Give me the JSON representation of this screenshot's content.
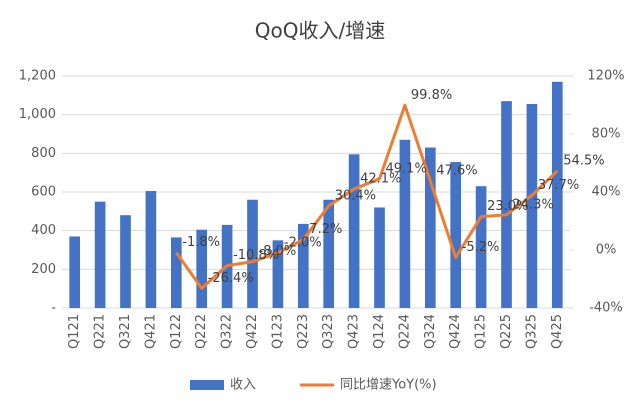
{
  "chart_data": {
    "type": "bar_line",
    "title": "QoQ收入/增速",
    "categories": [
      "Q121",
      "Q221",
      "Q321",
      "Q421",
      "Q122",
      "Q222",
      "Q322",
      "Q422",
      "Q123",
      "Q223",
      "Q323",
      "Q423",
      "Q124",
      "Q224",
      "Q324",
      "Q424",
      "Q125",
      "Q225",
      "Q325",
      "Q425"
    ],
    "series": [
      {
        "name": "收入",
        "color": "#4472c4",
        "axis": "y",
        "values": [
          370,
          550,
          480,
          605,
          365,
          405,
          430,
          560,
          350,
          435,
          560,
          795,
          520,
          870,
          830,
          755,
          630,
          1070,
          1055,
          1170
        ]
      },
      {
        "name": "同比增速YoY(%)",
        "color": "#ed7d31",
        "axis": "y2",
        "values": [
          null,
          null,
          null,
          null,
          -1.8,
          -26.4,
          -10.8,
          -8.0,
          -2.0,
          7.2,
          30.4,
          42.1,
          49.1,
          99.8,
          47.6,
          -5.2,
          23.0,
          24.3,
          37.7,
          54.5
        ],
        "value_labels": [
          null,
          null,
          null,
          null,
          "-1.8%",
          "-26.4%",
          "-10.8%",
          "-8.0%",
          "-2.0%",
          "7.2%",
          "30.4%",
          "42.1%",
          "49.1%",
          "99.8%",
          "47.6%",
          "-5.2%",
          "23.0%",
          "24.3%",
          "37.7%",
          "54.5%"
        ]
      }
    ],
    "ylim": [
      0,
      1200
    ],
    "yticks": [
      {
        "value": 0,
        "label": "-"
      },
      200,
      400,
      600,
      800,
      {
        "value": 1000,
        "label": "1,000"
      },
      {
        "value": 1200,
        "label": "1,200"
      }
    ],
    "y2lim": [
      -40,
      120
    ],
    "y2ticks": [
      {
        "value": -40,
        "label": "-40%"
      },
      {
        "value": 0,
        "label": "0%"
      },
      {
        "value": 40,
        "label": "40%"
      },
      {
        "value": 80,
        "label": "80%"
      },
      {
        "value": 120,
        "label": "120%"
      }
    ],
    "grid": true,
    "legend": "bottom"
  }
}
